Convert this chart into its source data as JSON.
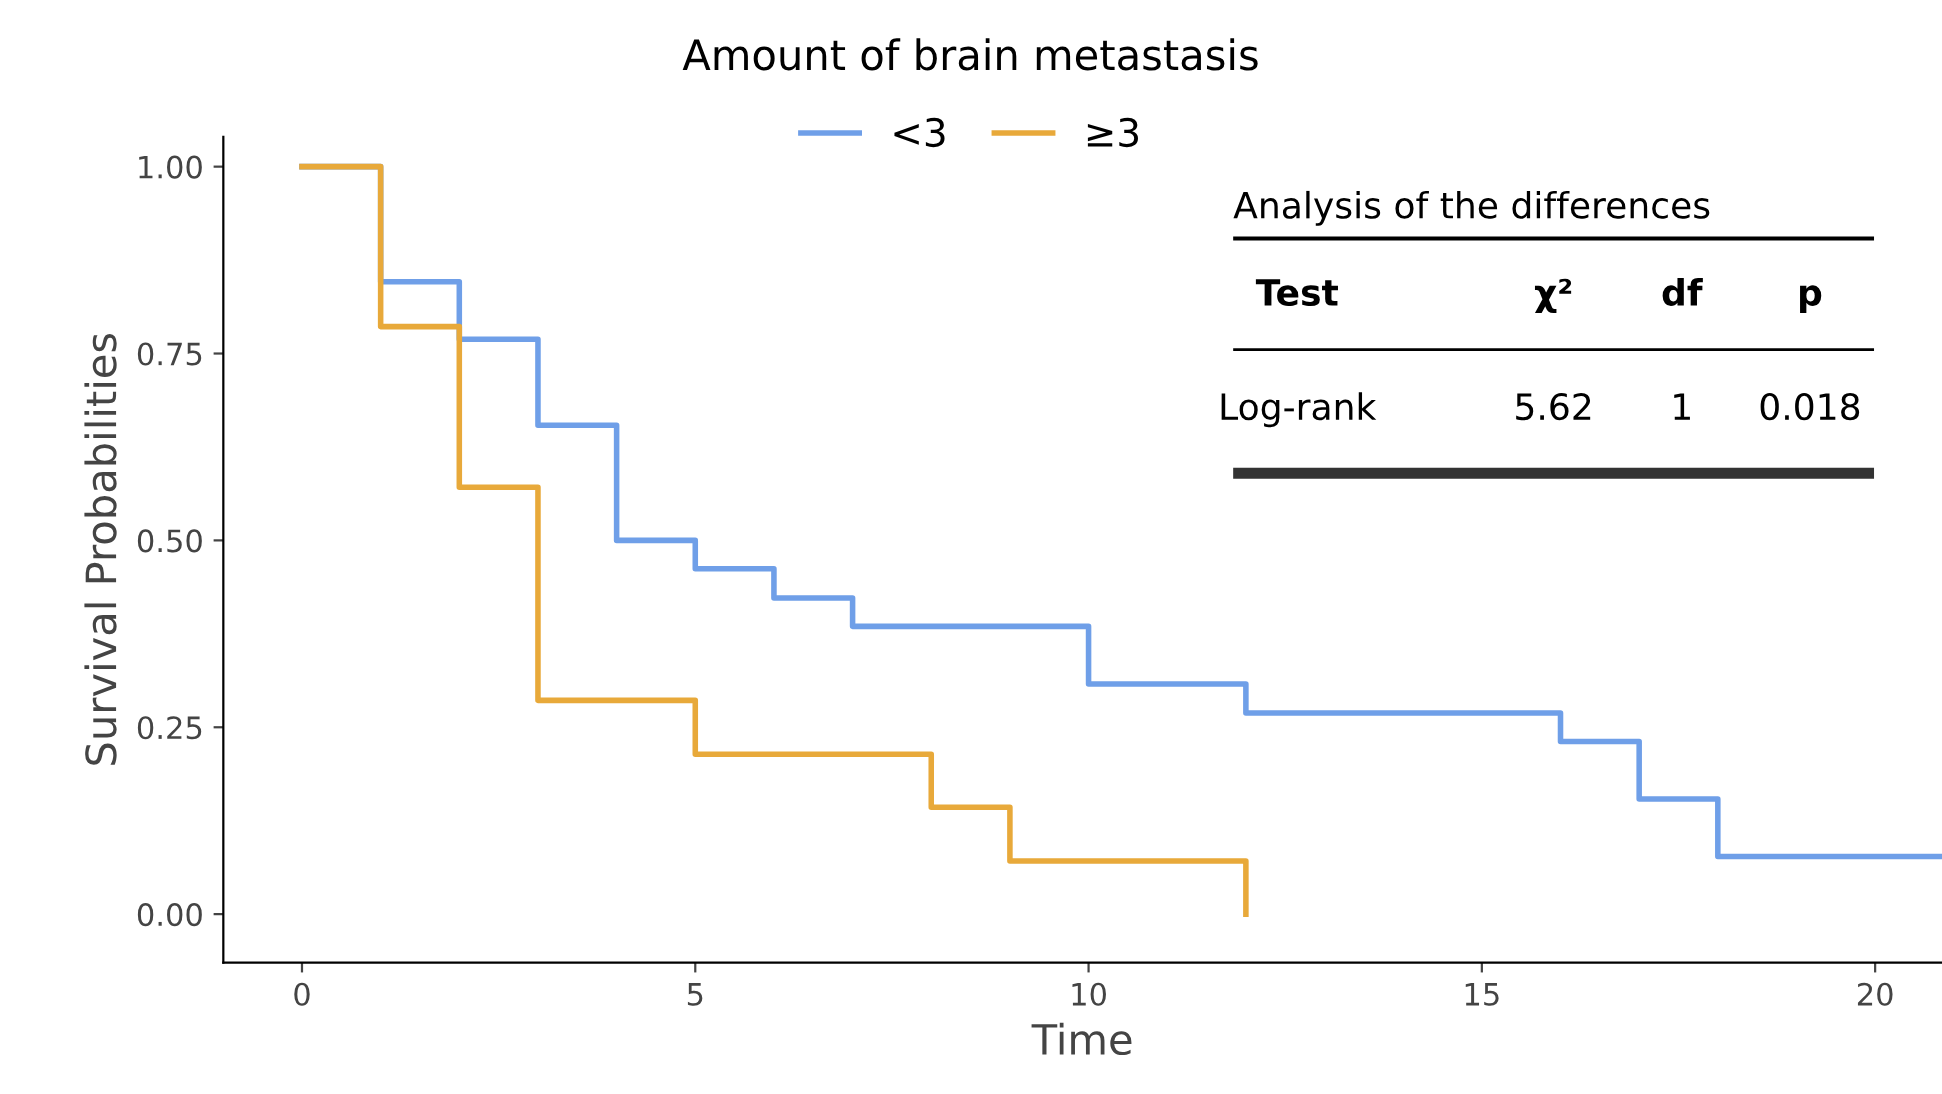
{
  "chart_data": {
    "type": "step",
    "title": "Amount of brain metastasis",
    "xlabel": "Time",
    "ylabel": "Survival Probabilities",
    "xlim": [
      -1,
      20.85
    ],
    "xticks": [
      0,
      5,
      10,
      15,
      20
    ],
    "ylim": [
      -0.065,
      1.04
    ],
    "yticks": [
      {
        "value": 0,
        "label": "0.00"
      },
      {
        "value": 0.25,
        "label": "0.25"
      },
      {
        "value": 0.5,
        "label": "0.50"
      },
      {
        "value": 0.75,
        "label": "0.75"
      },
      {
        "value": 1,
        "label": "1.00"
      }
    ],
    "series": [
      {
        "name": "<3",
        "color": "#6f9fe8",
        "x": [
          0,
          1,
          2,
          3,
          4,
          5,
          6,
          7,
          10,
          12,
          16,
          17,
          18,
          20.85
        ],
        "values": [
          1,
          0.846,
          0.769,
          0.654,
          0.5,
          0.462,
          0.423,
          0.385,
          0.308,
          0.269,
          0.231,
          0.154,
          0.077,
          0.077
        ]
      },
      {
        "name": "≥3",
        "color": "#e8a93a",
        "x": [
          0,
          1,
          2,
          3,
          5,
          8,
          9,
          12,
          12
        ],
        "values": [
          1,
          0.786,
          0.571,
          0.286,
          0.214,
          0.143,
          0.071,
          0.071,
          0
        ]
      }
    ],
    "legend": "top",
    "grid": false,
    "annotations": [
      "Analysis of the differences",
      "Test",
      "χ²",
      "df",
      "p",
      "Log-rank",
      "5.62",
      "1",
      "0.018"
    ]
  }
}
